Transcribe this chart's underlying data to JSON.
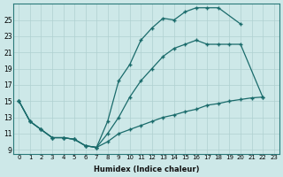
{
  "xlabel": "Humidex (Indice chaleur)",
  "ylabel": "",
  "background_color": "#cde8e8",
  "line_color": "#1a6b6b",
  "xlim": [
    -0.5,
    23.5
  ],
  "ylim": [
    8.5,
    27
  ],
  "xticks": [
    0,
    1,
    2,
    3,
    4,
    5,
    6,
    7,
    8,
    9,
    10,
    11,
    12,
    13,
    14,
    15,
    16,
    17,
    18,
    19,
    20,
    21,
    22,
    23
  ],
  "yticks": [
    9,
    11,
    13,
    15,
    17,
    19,
    21,
    23,
    25
  ],
  "line1_x": [
    0,
    1,
    2,
    3,
    4,
    5,
    6,
    7,
    8,
    9,
    10,
    11,
    12,
    13,
    14,
    15,
    16,
    17,
    18,
    20
  ],
  "line1_y": [
    15,
    12.5,
    11.5,
    10.5,
    10.5,
    10.3,
    9.5,
    9.3,
    12.5,
    17.5,
    19.5,
    22.5,
    24.0,
    25.2,
    25.0,
    26.0,
    26.5,
    26.5,
    26.5,
    24.5
  ],
  "line2_x": [
    0,
    1,
    2,
    3,
    4,
    5,
    6,
    7,
    8,
    9,
    10,
    11,
    12,
    13,
    14,
    15,
    16,
    17,
    18,
    19,
    20,
    22
  ],
  "line2_y": [
    15,
    12.5,
    11.5,
    10.5,
    10.5,
    10.3,
    9.5,
    9.3,
    11.0,
    13.0,
    15.5,
    17.5,
    19.0,
    20.5,
    21.5,
    22.0,
    22.5,
    22.0,
    22.0,
    22.0,
    22.0,
    15.5
  ],
  "line3_x": [
    0,
    1,
    2,
    3,
    4,
    5,
    6,
    7,
    8,
    9,
    10,
    11,
    12,
    13,
    14,
    15,
    16,
    17,
    18,
    19,
    20,
    21,
    22
  ],
  "line3_y": [
    15,
    12.5,
    11.5,
    10.5,
    10.5,
    10.3,
    9.5,
    9.3,
    10.0,
    11.0,
    11.5,
    12.0,
    12.5,
    13.0,
    13.3,
    13.7,
    14.0,
    14.5,
    14.7,
    15.0,
    15.2,
    15.4,
    15.5
  ]
}
